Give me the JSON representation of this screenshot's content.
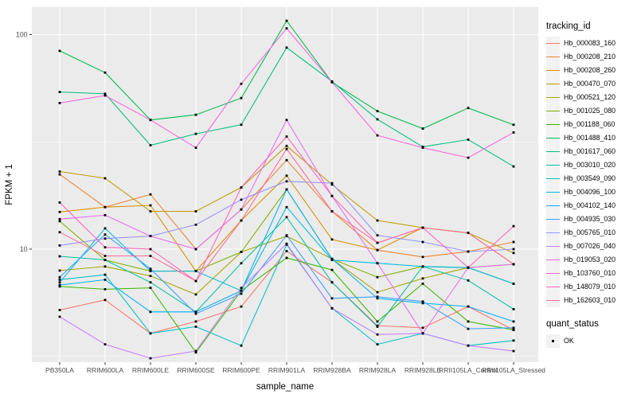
{
  "chart_data": {
    "type": "line",
    "title": "",
    "xlabel": "sample_name",
    "ylabel": "FPKM + 1",
    "y_scale": "log10",
    "y_ticks": [
      10,
      100
    ],
    "y_minor_ticks": [
      3.162,
      31.62
    ],
    "ylim": [
      2.95,
      134
    ],
    "grid": true,
    "legend_position": "right",
    "legend_title": "tracking_id",
    "legend2_title": "quant_status",
    "legend2_items": [
      {
        "label": "OK",
        "marker": "black-square"
      }
    ],
    "point_marker": "square",
    "point_color": "#000000",
    "panel_bg": "#EBEBEB",
    "grid_color": "#FFFFFF",
    "axis_text_color": "#4D4D4D",
    "categories": [
      "PB350LA",
      "RRIM600LA",
      "RRIM600LE",
      "RRIM600SE",
      "RRIM600PE",
      "RRIM901LA",
      "RRIM928BA",
      "RRIM928LA",
      "RRIM928LE",
      "RRII105LA_Control",
      "RRII105LA_Stressed"
    ],
    "series": [
      {
        "name": "Hb_000083_160",
        "color": "#F8766D",
        "values": [
          5.2,
          5.8,
          4.05,
          4.6,
          5.4,
          9.8,
          7.0,
          4.4,
          4.3,
          5.4,
          4.2
        ]
      },
      {
        "name": "Hb_000208_210",
        "color": "#EA8331",
        "values": [
          22.3,
          15.7,
          18,
          10,
          15.3,
          26,
          15,
          9.9,
          9.2,
          9.75,
          10.8
        ]
      },
      {
        "name": "Hb_000208_260",
        "color": "#D89000",
        "values": [
          14.9,
          15.7,
          16,
          7.9,
          13.6,
          22,
          11.1,
          9.9,
          12.6,
          11.9,
          8.5
        ]
      },
      {
        "name": "Hb_000470_070",
        "color": "#C09B00",
        "values": [
          23,
          21.4,
          15,
          15,
          19.4,
          30.3,
          20,
          13.6,
          12.6,
          11.9,
          9.6
        ]
      },
      {
        "name": "Hb_000521_120",
        "color": "#A3A500",
        "values": [
          7.95,
          8.3,
          7.5,
          6.15,
          9.7,
          11.5,
          9.0,
          6.3,
          7.3,
          8.2,
          8.5
        ]
      },
      {
        "name": "Hb_001025_080",
        "color": "#7CAE00",
        "values": [
          13.5,
          8.9,
          7.9,
          7.9,
          9.7,
          19,
          9.0,
          7.4,
          8.3,
          8.2,
          6.9
        ]
      },
      {
        "name": "Hb_001188_060",
        "color": "#39B600",
        "values": [
          6.7,
          6.5,
          6.6,
          3.3,
          6.4,
          9.1,
          8.0,
          4.6,
          6.9,
          4.6,
          4.2
        ]
      },
      {
        "name": "Hb_001488_410",
        "color": "#00BB4E",
        "values": [
          84,
          66.5,
          40,
          42.3,
          50.6,
          116,
          60,
          44,
          36.5,
          45.5,
          38
        ]
      },
      {
        "name": "Hb_001617_060",
        "color": "#00BF7D",
        "values": [
          54,
          53,
          30.5,
          34.5,
          38,
          87,
          60.5,
          40.3,
          30,
          32.4,
          24.3
        ]
      },
      {
        "name": "Hb_003010_020",
        "color": "#00C1A3",
        "values": [
          9.26,
          8.9,
          7.0,
          5.1,
          8.6,
          14.1,
          7.0,
          4.35,
          8.3,
          7.15,
          5.25
        ]
      },
      {
        "name": "Hb_003549_090",
        "color": "#00BFC4",
        "values": [
          7.2,
          7.6,
          4.05,
          4.35,
          3.55,
          10.5,
          5.3,
          3.6,
          4.05,
          3.55,
          3.75
        ]
      },
      {
        "name": "Hb_004096_100",
        "color": "#00BAE0",
        "values": [
          7.0,
          12.5,
          7.9,
          7.9,
          6.4,
          15.7,
          8.9,
          8.6,
          8.3,
          8.2,
          6.9
        ]
      },
      {
        "name": "Hb_004102_140",
        "color": "#00B0F6",
        "values": [
          6.8,
          7.2,
          5.1,
          5.1,
          6.4,
          19,
          9.0,
          5.9,
          5.6,
          5.4,
          4.6
        ]
      },
      {
        "name": "Hb_004935_030",
        "color": "#35A2FF",
        "values": [
          7.4,
          11.7,
          8.1,
          5.0,
          6.2,
          11.6,
          5.9,
          6.0,
          5.7,
          4.25,
          4.3
        ]
      },
      {
        "name": "Hb_005765_010",
        "color": "#9590FF",
        "values": [
          10.4,
          11.2,
          11.5,
          13,
          17,
          20.7,
          20.3,
          11.6,
          10.8,
          9.75,
          10
        ]
      },
      {
        "name": "Hb_007026_040",
        "color": "#C77CFF",
        "values": [
          4.84,
          3.6,
          3.1,
          3.35,
          6.6,
          10.6,
          5.3,
          4.0,
          4.05,
          3.55,
          3.35
        ]
      },
      {
        "name": "Hb_019053_020",
        "color": "#E76BF3",
        "values": [
          13.8,
          14.4,
          11.5,
          10,
          15.3,
          40,
          17.7,
          8.6,
          4.05,
          8.2,
          8.5
        ]
      },
      {
        "name": "Hb_103760_010",
        "color": "#FA62DB",
        "values": [
          48,
          52,
          40,
          29.7,
          59,
          107,
          60,
          33.9,
          29.7,
          26.7,
          35
        ]
      },
      {
        "name": "Hb_148079_010",
        "color": "#FF62BC",
        "values": [
          16.5,
          10.2,
          10,
          7.1,
          19.4,
          33.5,
          17.7,
          10.7,
          12.6,
          8.2,
          12.8
        ]
      },
      {
        "name": "Hb_162603_010",
        "color": "#FF6A98",
        "values": [
          12,
          9.3,
          9.3,
          7.1,
          13.6,
          29.3,
          15,
          10.7,
          12.6,
          11.9,
          8.5
        ]
      }
    ]
  }
}
